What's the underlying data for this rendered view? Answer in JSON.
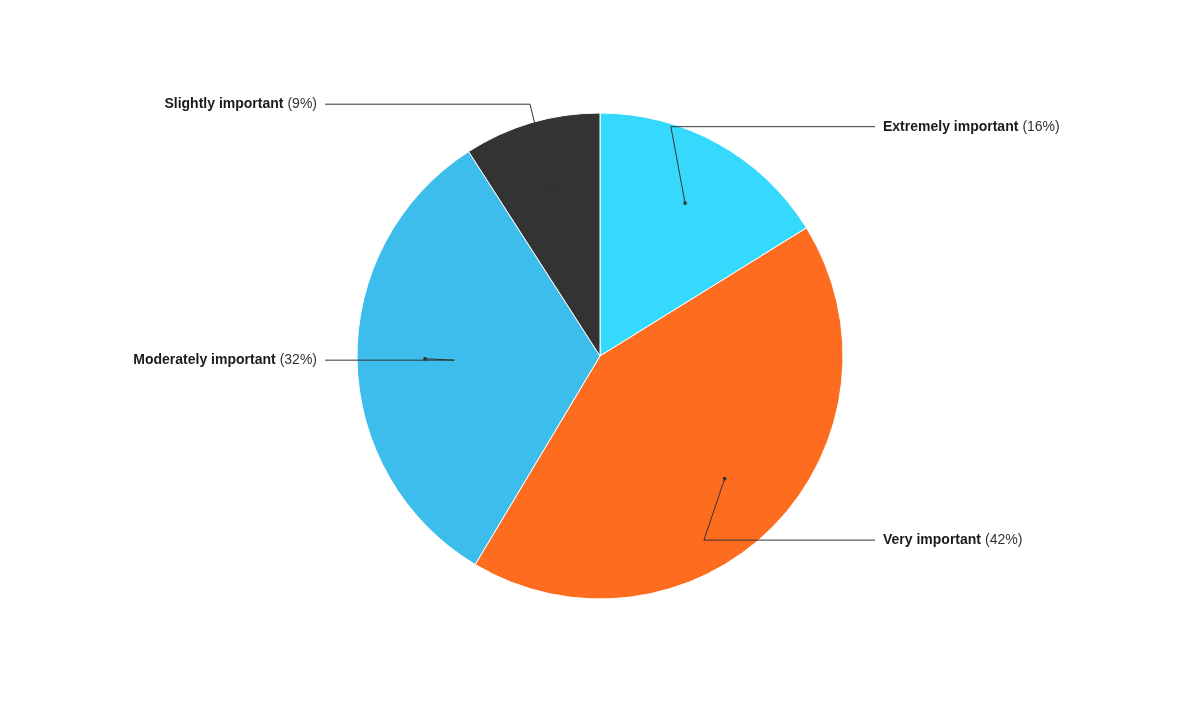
{
  "chart_data": {
    "type": "pie",
    "categories": [
      "Extremely important",
      "Very important",
      "Moderately important",
      "Slightly important"
    ],
    "values": [
      16,
      42,
      32,
      9
    ],
    "colors": [
      "#35d9fd",
      "#fe6d1f",
      "#3dbdec",
      "#333333"
    ],
    "value_labels": [
      "(16%)",
      "(42%)",
      "(32%)",
      "(9%)"
    ]
  }
}
